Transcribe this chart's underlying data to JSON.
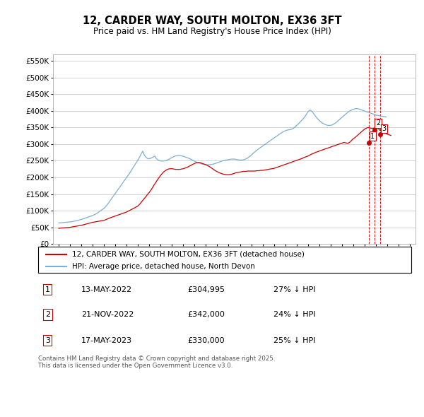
{
  "title": "12, CARDER WAY, SOUTH MOLTON, EX36 3FT",
  "subtitle": "Price paid vs. HM Land Registry's House Price Index (HPI)",
  "legend_label_red": "12, CARDER WAY, SOUTH MOLTON, EX36 3FT (detached house)",
  "legend_label_blue": "HPI: Average price, detached house, North Devon",
  "footnote": "Contains HM Land Registry data © Crown copyright and database right 2025.\nThis data is licensed under the Open Government Licence v3.0.",
  "ylim": [
    0,
    570000
  ],
  "yticks": [
    0,
    50000,
    100000,
    150000,
    200000,
    250000,
    300000,
    350000,
    400000,
    450000,
    500000,
    550000
  ],
  "ytick_labels": [
    "£0",
    "£50K",
    "£100K",
    "£150K",
    "£200K",
    "£250K",
    "£300K",
    "£350K",
    "£400K",
    "£450K",
    "£500K",
    "£550K"
  ],
  "xlim_start": 1994.5,
  "xlim_end": 2026.5,
  "hpi_x": [
    1995.0,
    1995.08,
    1995.17,
    1995.25,
    1995.33,
    1995.42,
    1995.5,
    1995.58,
    1995.67,
    1995.75,
    1995.83,
    1995.92,
    1996.0,
    1996.08,
    1996.17,
    1996.25,
    1996.33,
    1996.42,
    1996.5,
    1996.58,
    1996.67,
    1996.75,
    1996.83,
    1996.92,
    1997.0,
    1997.08,
    1997.17,
    1997.25,
    1997.33,
    1997.42,
    1997.5,
    1997.58,
    1997.67,
    1997.75,
    1997.83,
    1997.92,
    1998.0,
    1998.08,
    1998.17,
    1998.25,
    1998.33,
    1998.42,
    1998.5,
    1998.58,
    1998.67,
    1998.75,
    1998.83,
    1998.92,
    1999.0,
    1999.08,
    1999.17,
    1999.25,
    1999.33,
    1999.42,
    1999.5,
    1999.58,
    1999.67,
    1999.75,
    1999.83,
    1999.92,
    2000.0,
    2000.08,
    2000.17,
    2000.25,
    2000.33,
    2000.42,
    2000.5,
    2000.58,
    2000.67,
    2000.75,
    2000.83,
    2000.92,
    2001.0,
    2001.08,
    2001.17,
    2001.25,
    2001.33,
    2001.42,
    2001.5,
    2001.58,
    2001.67,
    2001.75,
    2001.83,
    2001.92,
    2002.0,
    2002.08,
    2002.17,
    2002.25,
    2002.33,
    2002.42,
    2002.5,
    2002.58,
    2002.67,
    2002.75,
    2002.83,
    2002.92,
    2003.0,
    2003.08,
    2003.17,
    2003.25,
    2003.33,
    2003.42,
    2003.5,
    2003.58,
    2003.67,
    2003.75,
    2003.83,
    2003.92,
    2004.0,
    2004.08,
    2004.17,
    2004.25,
    2004.33,
    2004.42,
    2004.5,
    2004.58,
    2004.67,
    2004.75,
    2004.83,
    2004.92,
    2005.0,
    2005.08,
    2005.17,
    2005.25,
    2005.33,
    2005.42,
    2005.5,
    2005.58,
    2005.67,
    2005.75,
    2005.83,
    2005.92,
    2006.0,
    2006.08,
    2006.17,
    2006.25,
    2006.33,
    2006.42,
    2006.5,
    2006.58,
    2006.67,
    2006.75,
    2006.83,
    2006.92,
    2007.0,
    2007.08,
    2007.17,
    2007.25,
    2007.33,
    2007.42,
    2007.5,
    2007.58,
    2007.67,
    2007.75,
    2007.83,
    2007.92,
    2008.0,
    2008.08,
    2008.17,
    2008.25,
    2008.33,
    2008.42,
    2008.5,
    2008.58,
    2008.67,
    2008.75,
    2008.83,
    2008.92,
    2009.0,
    2009.08,
    2009.17,
    2009.25,
    2009.33,
    2009.42,
    2009.5,
    2009.58,
    2009.67,
    2009.75,
    2009.83,
    2009.92,
    2010.0,
    2010.08,
    2010.17,
    2010.25,
    2010.33,
    2010.42,
    2010.5,
    2010.58,
    2010.67,
    2010.75,
    2010.83,
    2010.92,
    2011.0,
    2011.08,
    2011.17,
    2011.25,
    2011.33,
    2011.42,
    2011.5,
    2011.58,
    2011.67,
    2011.75,
    2011.83,
    2011.92,
    2012.0,
    2012.08,
    2012.17,
    2012.25,
    2012.33,
    2012.42,
    2012.5,
    2012.58,
    2012.67,
    2012.75,
    2012.83,
    2012.92,
    2013.0,
    2013.08,
    2013.17,
    2013.25,
    2013.33,
    2013.42,
    2013.5,
    2013.58,
    2013.67,
    2013.75,
    2013.83,
    2013.92,
    2014.0,
    2014.08,
    2014.17,
    2014.25,
    2014.33,
    2014.42,
    2014.5,
    2014.58,
    2014.67,
    2014.75,
    2014.83,
    2014.92,
    2015.0,
    2015.08,
    2015.17,
    2015.25,
    2015.33,
    2015.42,
    2015.5,
    2015.58,
    2015.67,
    2015.75,
    2015.83,
    2015.92,
    2016.0,
    2016.08,
    2016.17,
    2016.25,
    2016.33,
    2016.42,
    2016.5,
    2016.58,
    2016.67,
    2016.75,
    2016.83,
    2016.92,
    2017.0,
    2017.08,
    2017.17,
    2017.25,
    2017.33,
    2017.42,
    2017.5,
    2017.58,
    2017.67,
    2017.75,
    2017.83,
    2017.92,
    2018.0,
    2018.08,
    2018.17,
    2018.25,
    2018.33,
    2018.42,
    2018.5,
    2018.58,
    2018.67,
    2018.75,
    2018.83,
    2018.92,
    2019.0,
    2019.08,
    2019.17,
    2019.25,
    2019.33,
    2019.42,
    2019.5,
    2019.58,
    2019.67,
    2019.75,
    2019.83,
    2019.92,
    2020.0,
    2020.08,
    2020.17,
    2020.25,
    2020.33,
    2020.42,
    2020.5,
    2020.58,
    2020.67,
    2020.75,
    2020.83,
    2020.92,
    2021.0,
    2021.08,
    2021.17,
    2021.25,
    2021.33,
    2021.42,
    2021.5,
    2021.58,
    2021.67,
    2021.75,
    2021.83,
    2021.92,
    2022.0,
    2022.08,
    2022.17,
    2022.25,
    2022.33,
    2022.42,
    2022.5,
    2022.58,
    2022.67,
    2022.75,
    2022.83,
    2022.92,
    2023.0,
    2023.08,
    2023.17,
    2023.25,
    2023.33,
    2023.42,
    2023.5,
    2023.58,
    2023.67,
    2023.75,
    2023.83,
    2023.92,
    2024.0,
    2024.08,
    2024.17,
    2024.25,
    2024.33
  ],
  "hpi_y": [
    63000,
    63200,
    63500,
    63800,
    64000,
    64300,
    64500,
    64800,
    65000,
    65300,
    65600,
    65900,
    66200,
    66600,
    67000,
    67500,
    68000,
    68600,
    69200,
    69800,
    70500,
    71200,
    72000,
    72800,
    73500,
    74500,
    75500,
    76500,
    77500,
    78500,
    79500,
    80500,
    81500,
    82500,
    83500,
    84500,
    85500,
    86800,
    88000,
    89500,
    91000,
    93000,
    95000,
    97000,
    99000,
    101000,
    103000,
    105000,
    107000,
    110000,
    113000,
    116000,
    120000,
    124000,
    128000,
    132000,
    136000,
    140000,
    144000,
    148000,
    152000,
    156000,
    160000,
    164000,
    168000,
    172000,
    176000,
    180000,
    184000,
    188000,
    192000,
    196000,
    200000,
    204000,
    208000,
    212000,
    216500,
    221000,
    225500,
    230000,
    234500,
    239000,
    243500,
    248000,
    252000,
    257000,
    262500,
    268000,
    273500,
    279000,
    272000,
    266000,
    262000,
    259000,
    257000,
    256000,
    256500,
    257000,
    258000,
    259500,
    261000,
    262500,
    264000,
    258000,
    255000,
    253000,
    251000,
    250000,
    249500,
    249000,
    249000,
    249000,
    249500,
    250000,
    251000,
    252000,
    253500,
    255000,
    256500,
    258000,
    259500,
    261000,
    262500,
    263500,
    264500,
    265000,
    265500,
    265500,
    265500,
    265000,
    264500,
    264000,
    263500,
    262500,
    261500,
    260500,
    259500,
    258500,
    257500,
    256000,
    254500,
    253000,
    251500,
    250000,
    248500,
    247000,
    246000,
    245000,
    244000,
    243000,
    242000,
    241000,
    240000,
    239500,
    239000,
    238500,
    238000,
    238000,
    238000,
    238000,
    238000,
    238500,
    239000,
    239500,
    240000,
    241000,
    242000,
    243000,
    244000,
    245000,
    246000,
    247000,
    248000,
    249000,
    250000,
    250500,
    251000,
    252000,
    252500,
    253000,
    253500,
    254000,
    254500,
    255000,
    255000,
    255000,
    255000,
    254500,
    254000,
    253500,
    253000,
    252500,
    252000,
    252000,
    252000,
    252500,
    253000,
    254000,
    255000,
    256500,
    258000,
    260000,
    262000,
    264500,
    267000,
    269500,
    272000,
    274500,
    277000,
    279500,
    282000,
    284000,
    286000,
    288000,
    290000,
    292000,
    294000,
    296000,
    298000,
    300000,
    302000,
    304000,
    306000,
    308000,
    310000,
    312000,
    314000,
    316000,
    318000,
    320000,
    322000,
    324000,
    326000,
    328000,
    330000,
    332000,
    334000,
    335500,
    337000,
    338500,
    340000,
    341000,
    342000,
    342500,
    343000,
    343500,
    344000,
    345000,
    346500,
    348000,
    350500,
    353000,
    355500,
    358000,
    361000,
    364000,
    367000,
    370000,
    373000,
    376000,
    379500,
    383500,
    387500,
    392000,
    396500,
    400000,
    402000,
    401000,
    399000,
    396000,
    392000,
    388000,
    384000,
    380500,
    377000,
    374000,
    371000,
    368500,
    366000,
    364000,
    362000,
    360500,
    359000,
    358000,
    357000,
    356500,
    356000,
    356000,
    356500,
    357000,
    358000,
    359500,
    361000,
    363000,
    365000,
    367500,
    370000,
    372500,
    375000,
    377500,
    380000,
    382500,
    385000,
    387500,
    390000,
    392500,
    395000,
    397000,
    399000,
    400500,
    402000,
    403500,
    404500,
    405500,
    406000,
    406500,
    406500,
    406000,
    405500,
    404500,
    403500,
    402500,
    401500,
    400500,
    399500,
    398500,
    397500,
    396500,
    395500,
    394500,
    393500,
    392500,
    391500,
    390500,
    389500,
    388500,
    387500,
    386500,
    386000,
    385500,
    385000,
    384500,
    384000,
    383500,
    383000,
    382500,
    382000,
    381500
  ],
  "red_x": [
    1995.0,
    1995.17,
    1995.33,
    1995.5,
    1995.67,
    1995.83,
    1996.0,
    1996.17,
    1996.33,
    1996.5,
    1996.67,
    1996.83,
    1997.0,
    1997.17,
    1997.33,
    1997.5,
    1997.67,
    1997.83,
    1998.0,
    1998.17,
    1998.33,
    1998.5,
    1998.67,
    1998.83,
    1999.0,
    1999.17,
    1999.33,
    1999.5,
    1999.67,
    1999.83,
    2000.0,
    2000.17,
    2000.33,
    2000.5,
    2000.67,
    2000.83,
    2001.0,
    2001.17,
    2001.33,
    2001.5,
    2001.67,
    2001.83,
    2002.0,
    2002.17,
    2002.33,
    2002.5,
    2002.67,
    2002.83,
    2003.0,
    2003.17,
    2003.33,
    2003.5,
    2003.67,
    2003.83,
    2004.0,
    2004.17,
    2004.33,
    2004.5,
    2004.67,
    2004.83,
    2005.0,
    2005.17,
    2005.33,
    2005.5,
    2005.67,
    2005.83,
    2006.0,
    2006.17,
    2006.33,
    2006.5,
    2006.67,
    2006.83,
    2007.0,
    2007.17,
    2007.33,
    2007.5,
    2007.67,
    2007.83,
    2008.0,
    2008.17,
    2008.33,
    2008.5,
    2008.67,
    2008.83,
    2009.0,
    2009.17,
    2009.33,
    2009.5,
    2009.67,
    2009.83,
    2010.0,
    2010.17,
    2010.33,
    2010.5,
    2010.67,
    2010.83,
    2011.0,
    2011.17,
    2011.33,
    2011.5,
    2011.67,
    2011.83,
    2012.0,
    2012.17,
    2012.33,
    2012.5,
    2012.67,
    2012.83,
    2013.0,
    2013.17,
    2013.33,
    2013.5,
    2013.67,
    2013.83,
    2014.0,
    2014.17,
    2014.33,
    2014.5,
    2014.67,
    2014.83,
    2015.0,
    2015.17,
    2015.33,
    2015.5,
    2015.67,
    2015.83,
    2016.0,
    2016.17,
    2016.33,
    2016.5,
    2016.67,
    2016.83,
    2017.0,
    2017.17,
    2017.33,
    2017.5,
    2017.67,
    2017.83,
    2018.0,
    2018.17,
    2018.33,
    2018.5,
    2018.67,
    2018.83,
    2019.0,
    2019.17,
    2019.33,
    2019.5,
    2019.67,
    2019.83,
    2020.0,
    2020.17,
    2020.33,
    2020.5,
    2020.67,
    2020.83,
    2021.0,
    2021.17,
    2021.33,
    2021.5,
    2021.67,
    2021.83,
    2022.0,
    2022.17,
    2022.33,
    2022.5,
    2022.67,
    2022.83,
    2023.0,
    2023.17,
    2023.33,
    2023.5,
    2023.67,
    2023.83,
    2024.0,
    2024.17,
    2024.33
  ],
  "red_y": [
    47000,
    47500,
    48000,
    48500,
    49000,
    49500,
    50000,
    51000,
    52000,
    53000,
    54000,
    55000,
    56000,
    57500,
    59000,
    60500,
    62000,
    63500,
    65000,
    66000,
    67000,
    68000,
    69000,
    70000,
    71000,
    73000,
    75500,
    78000,
    80000,
    82000,
    84000,
    86000,
    88000,
    90000,
    92000,
    94000,
    96000,
    99000,
    102000,
    105000,
    108000,
    111000,
    114000,
    120000,
    127000,
    134000,
    141000,
    148000,
    155000,
    163000,
    172000,
    181000,
    190000,
    198000,
    206000,
    213000,
    218000,
    222000,
    225000,
    226000,
    226000,
    225000,
    224000,
    224000,
    224000,
    225000,
    226000,
    228000,
    230000,
    233000,
    236000,
    239000,
    242000,
    244000,
    245000,
    244000,
    242000,
    240000,
    238000,
    235000,
    232000,
    228000,
    224000,
    220000,
    217000,
    214000,
    212000,
    210000,
    209000,
    208000,
    208000,
    209000,
    210000,
    212000,
    214000,
    215000,
    216000,
    217000,
    218000,
    218000,
    219000,
    219000,
    219000,
    219000,
    219000,
    220000,
    220000,
    221000,
    221000,
    222000,
    223000,
    224000,
    225000,
    226000,
    227000,
    229000,
    231000,
    233000,
    235000,
    237000,
    239000,
    241000,
    243000,
    245000,
    247000,
    249000,
    251000,
    253000,
    255000,
    257000,
    260000,
    262000,
    264000,
    267000,
    270000,
    272000,
    275000,
    277000,
    279000,
    281000,
    283000,
    285000,
    287000,
    289000,
    291000,
    293000,
    295000,
    297000,
    299000,
    301000,
    303000,
    305000,
    304000,
    302000,
    305000,
    310000,
    316000,
    320000,
    325000,
    330000,
    335000,
    340000,
    345000,
    348000,
    350000,
    348000,
    347000,
    348000,
    350000,
    348000,
    342000,
    338000,
    335000,
    332000,
    330000,
    328000,
    326000
  ],
  "sale_points": [
    {
      "year": 2022.37,
      "price": 304995,
      "label": "1"
    },
    {
      "year": 2022.9,
      "price": 342000,
      "label": "2"
    },
    {
      "year": 2023.37,
      "price": 330000,
      "label": "3"
    }
  ],
  "table_rows": [
    {
      "num": "1",
      "date": "13-MAY-2022",
      "price": "£304,995",
      "hpi": "27% ↓ HPI"
    },
    {
      "num": "2",
      "date": "21-NOV-2022",
      "price": "£342,000",
      "hpi": "24% ↓ HPI"
    },
    {
      "num": "3",
      "date": "17-MAY-2023",
      "price": "£330,000",
      "hpi": "25% ↓ HPI"
    }
  ],
  "hpi_color": "#7aaed6",
  "red_color": "#cc0000",
  "grid_color": "#cccccc",
  "vline_color": "#cc0000"
}
